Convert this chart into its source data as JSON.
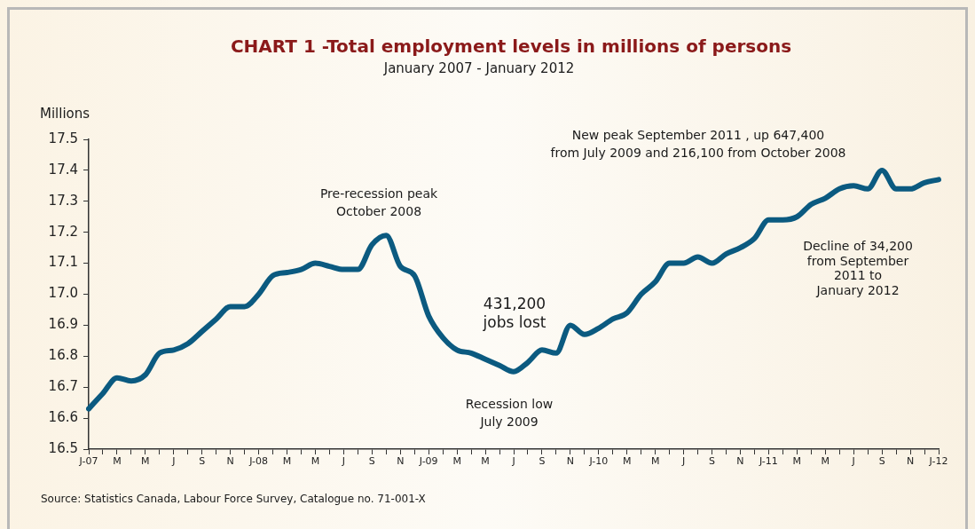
{
  "chart_data": {
    "type": "line",
    "title": "CHART 1 -Total employment levels in millions of persons",
    "subtitle": "January 2007 - January 2012",
    "ylabel": "Millions",
    "categories": [
      "J-07",
      null,
      "M",
      null,
      "M",
      null,
      "J",
      null,
      "S",
      null,
      "N",
      null,
      "J-08",
      null,
      "M",
      null,
      "M",
      null,
      "J",
      null,
      "S",
      null,
      "N",
      null,
      "J-09",
      null,
      "M",
      null,
      "M",
      null,
      "J",
      null,
      "S",
      null,
      "N",
      null,
      "J-10",
      null,
      "M",
      null,
      "M",
      null,
      "J",
      null,
      "S",
      null,
      "N",
      null,
      "J-11",
      null,
      "M",
      null,
      "M",
      null,
      "J",
      null,
      "S",
      null,
      "N",
      null,
      "J-12"
    ],
    "series": [
      {
        "color": "#0b5a80",
        "values": [
          16.63,
          16.68,
          16.73,
          16.72,
          16.74,
          16.81,
          16.82,
          16.84,
          16.88,
          16.92,
          16.96,
          16.96,
          17.0,
          17.06,
          17.07,
          17.08,
          17.1,
          17.09,
          17.08,
          17.08,
          17.16,
          17.19,
          17.09,
          17.06,
          16.93,
          16.86,
          16.82,
          16.81,
          16.79,
          16.77,
          16.75,
          16.78,
          16.82,
          16.81,
          16.9,
          16.87,
          16.89,
          16.92,
          16.94,
          17.0,
          17.04,
          17.1,
          17.1,
          17.12,
          17.1,
          17.13,
          17.15,
          17.18,
          17.24,
          17.24,
          17.25,
          17.29,
          17.31,
          17.34,
          17.35,
          17.34,
          17.4,
          17.34,
          17.34,
          17.36,
          17.37
        ]
      }
    ],
    "ylim": [
      16.5,
      17.5
    ],
    "yticks": [
      16.5,
      16.6,
      16.7,
      16.8,
      16.9,
      {
        "value": 17,
        "label": "17.0"
      },
      17.1,
      17.2,
      17.3,
      17.4,
      17.5
    ],
    "grid": false,
    "legend": false,
    "marker": "none",
    "line_style": "solid",
    "annotations": [
      "Pre-recession peak\nOctober 2008",
      "431,200\njobs lost",
      "Recession low\nJuly 2009",
      "New peak September 2011 , up 647,400\nfrom July 2009 and 216,100 from October 2008",
      "Decline of 34,200\nfrom September\n2011 to\nJanuary 2012",
      "Source: Statistics Canada, Labour Force Survey, Catalogue no. 71-001-X"
    ]
  }
}
